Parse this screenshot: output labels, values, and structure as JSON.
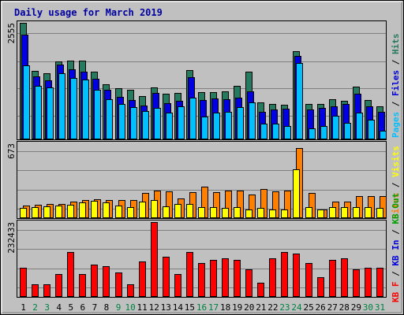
{
  "chart_data": [
    {
      "type": "bar",
      "title": "Daily usage for March 2019",
      "categories": [
        "1",
        "2",
        "3",
        "4",
        "5",
        "6",
        "7",
        "8",
        "9",
        "10",
        "11",
        "12",
        "13",
        "14",
        "15",
        "16",
        "17",
        "18",
        "19",
        "20",
        "21",
        "22",
        "23",
        "24",
        "25",
        "26",
        "27",
        "28",
        "29",
        "30",
        "31"
      ],
      "weekend_days": [
        "2",
        "3",
        "9",
        "10",
        "16",
        "17",
        "23",
        "24",
        "30",
        "31"
      ],
      "ymax_label": "2555",
      "ylim": [
        0,
        2555
      ],
      "grid": true,
      "series": [
        {
          "name": "Hits",
          "color": "#257a60",
          "values": [
            2555,
            1500,
            1450,
            1710,
            1720,
            1720,
            1480,
            1200,
            1120,
            1090,
            950,
            1140,
            1000,
            1010,
            1520,
            1040,
            1040,
            1050,
            1180,
            1480,
            810,
            770,
            760,
            1930,
            780,
            770,
            880,
            850,
            1150,
            860,
            730
          ]
        },
        {
          "name": "Files",
          "color": "#0000e0",
          "values": [
            2300,
            1380,
            1300,
            1640,
            1540,
            1480,
            1330,
            1080,
            930,
            870,
            750,
            1020,
            800,
            840,
            1360,
            860,
            890,
            880,
            920,
            1050,
            610,
            660,
            670,
            1830,
            660,
            690,
            730,
            770,
            1000,
            720,
            610
          ]
        },
        {
          "name": "Pages",
          "color": "#00c0ff",
          "values": [
            1620,
            1180,
            1140,
            1450,
            1340,
            1310,
            1080,
            880,
            780,
            700,
            620,
            690,
            590,
            720,
            920,
            500,
            590,
            610,
            700,
            820,
            350,
            350,
            300,
            1680,
            240,
            300,
            510,
            370,
            590,
            440,
            190
          ]
        }
      ]
    },
    {
      "type": "bar",
      "ymax_label": "673",
      "ylim": [
        0,
        673
      ],
      "grid": true,
      "series": [
        {
          "name": "Sites",
          "color": "#ff8000",
          "values": [
            110,
            120,
            125,
            130,
            150,
            165,
            170,
            165,
            160,
            160,
            230,
            250,
            240,
            180,
            235,
            285,
            235,
            250,
            250,
            210,
            265,
            240,
            250,
            630,
            225,
            80,
            150,
            150,
            195,
            195,
            195
          ]
        },
        {
          "name": "Visits",
          "color": "#ffff00",
          "values": [
            90,
            100,
            105,
            110,
            120,
            145,
            155,
            140,
            110,
            100,
            150,
            160,
            105,
            130,
            130,
            100,
            100,
            90,
            100,
            80,
            90,
            80,
            80,
            440,
            100,
            75,
            100,
            100,
            100,
            100,
            90
          ]
        }
      ]
    },
    {
      "type": "bar",
      "ymax_label": "232433",
      "ylim": [
        0,
        232433
      ],
      "grid": true,
      "series": [
        {
          "name": "KB In",
          "color": "#0000e0",
          "values": []
        },
        {
          "name": "KB Out",
          "color": "#00a000",
          "values": []
        },
        {
          "name": "KB F",
          "color": "#ff0000",
          "values": [
            90000,
            40000,
            40000,
            70000,
            140000,
            70000,
            100000,
            95000,
            75000,
            40000,
            110000,
            232433,
            125000,
            70000,
            140000,
            105000,
            115000,
            120000,
            115000,
            85000,
            45000,
            120000,
            140000,
            135000,
            105000,
            60000,
            115000,
            120000,
            85000,
            90000,
            90000
          ]
        }
      ]
    }
  ],
  "colors": {
    "background": "#c0c0c0",
    "title": "#0000a0",
    "weekday_label": "#000000",
    "weekend_label": "#008040",
    "kb_f_label": "#ff0000",
    "legend_separator": "#000000"
  }
}
